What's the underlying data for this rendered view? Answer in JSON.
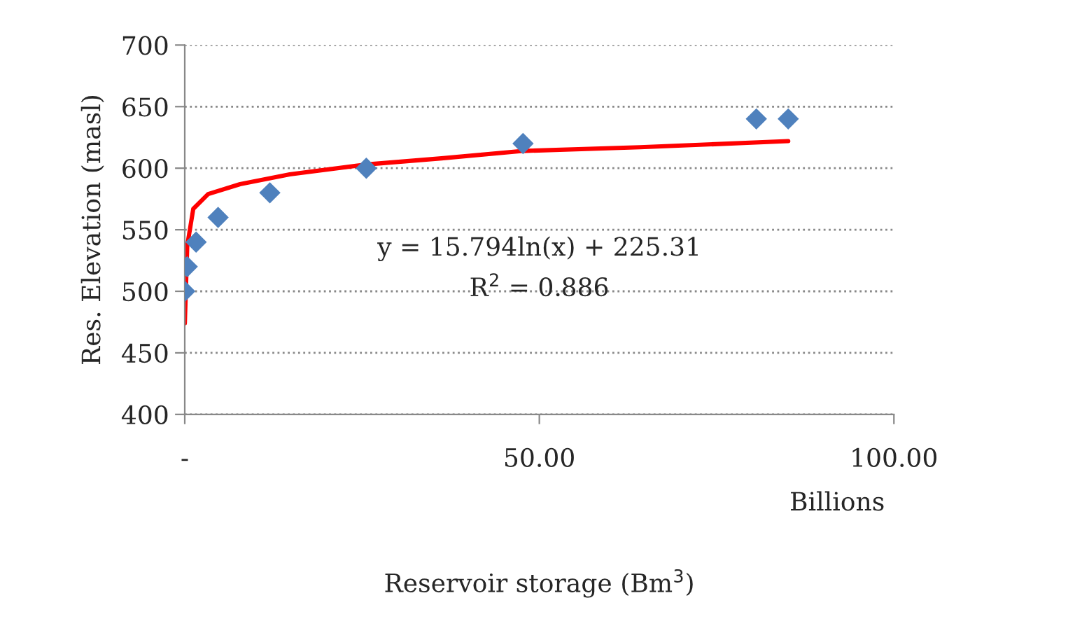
{
  "chart_data": {
    "type": "scatter",
    "xlabel": "Reservoir storage (Bm$^{3}$)",
    "ylabel": "Res. Elevation (masl)",
    "annotations": [
      "y = 15.794ln(x) + 225.31",
      "R$^{2}$ = 0.886",
      "Billions"
    ],
    "series": [
      {
        "color": "#4f81bd",
        "marker": "diamond",
        "x": [
          0,
          0.35,
          1.6,
          4.7,
          12.0,
          25.6,
          47.7,
          80.6,
          85.1
        ],
        "values": [
          500,
          520,
          540,
          560,
          580,
          600,
          620,
          640,
          640
        ]
      },
      {
        "type": "line",
        "color": "#ff0000",
        "marker": "none",
        "line_style": "solid",
        "x": [
          0.01,
          0.35,
          1.2,
          3.3,
          7.8,
          14.8,
          25.6,
          36.2,
          47.7,
          64.2,
          85.1
        ],
        "values": [
          474,
          537,
          567,
          579,
          587,
          595,
          603,
          608,
          614,
          617,
          622
        ]
      }
    ],
    "xlim": [
      0,
      100
    ],
    "xticks": [
      {
        "value": 0,
        "label": "-"
      },
      {
        "value": 50,
        "label": "50.00"
      },
      {
        "value": 100,
        "label": "100.00"
      }
    ],
    "ylim": [
      400,
      700
    ],
    "yticks": [
      400,
      450,
      500,
      550,
      600,
      650,
      700
    ],
    "grid": "y",
    "legend": false
  }
}
